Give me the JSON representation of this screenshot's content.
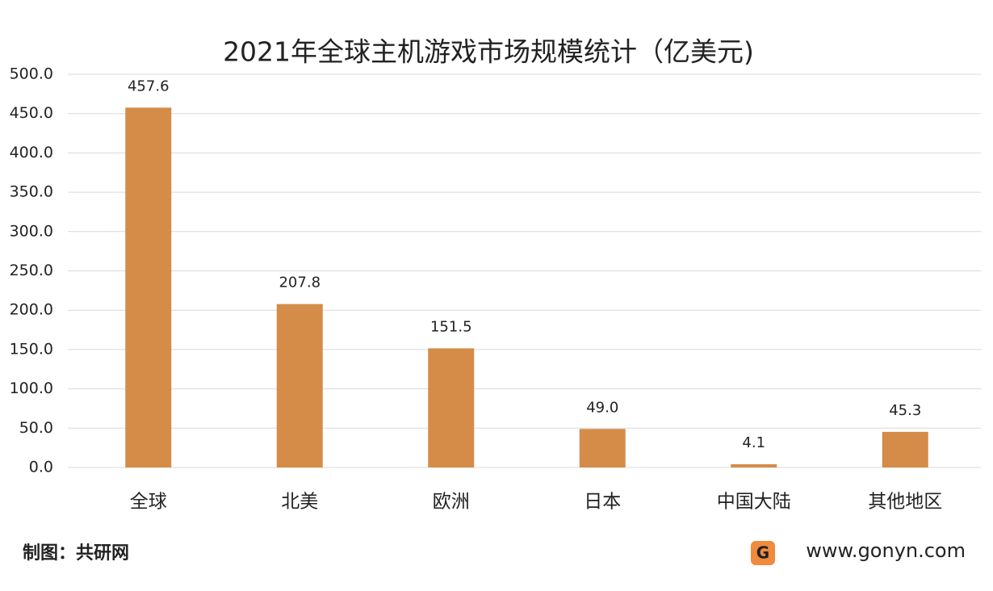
{
  "chart_data": {
    "type": "bar",
    "title": "2021年全球主机游戏市场规模统计（亿美元)",
    "categories": [
      "全球",
      "北美",
      "欧洲",
      "日本",
      "中国大陆",
      "其他地区"
    ],
    "values": [
      457.6,
      207.8,
      151.5,
      49.0,
      4.1,
      45.3
    ],
    "value_labels": [
      "457.6",
      "207.8",
      "151.5",
      "49.0",
      "4.1",
      "45.3"
    ],
    "color": "#d58c48",
    "ylim": [
      0,
      500
    ],
    "yticks": [
      {
        "value": 0,
        "label": "0.0"
      },
      {
        "value": 50,
        "label": "50.0"
      },
      {
        "value": 100,
        "label": "100.0"
      },
      {
        "value": 150,
        "label": "150.0"
      },
      {
        "value": 200,
        "label": "200.0"
      },
      {
        "value": 250,
        "label": "250.0"
      },
      {
        "value": 300,
        "label": "300.0"
      },
      {
        "value": 350,
        "label": "350.0"
      },
      {
        "value": 400,
        "label": "400.0"
      },
      {
        "value": 450,
        "label": "450.0"
      },
      {
        "value": 500,
        "label": "500.0"
      }
    ],
    "grid": true,
    "source": "制图：共研网",
    "website": "www.gonyn.com"
  }
}
